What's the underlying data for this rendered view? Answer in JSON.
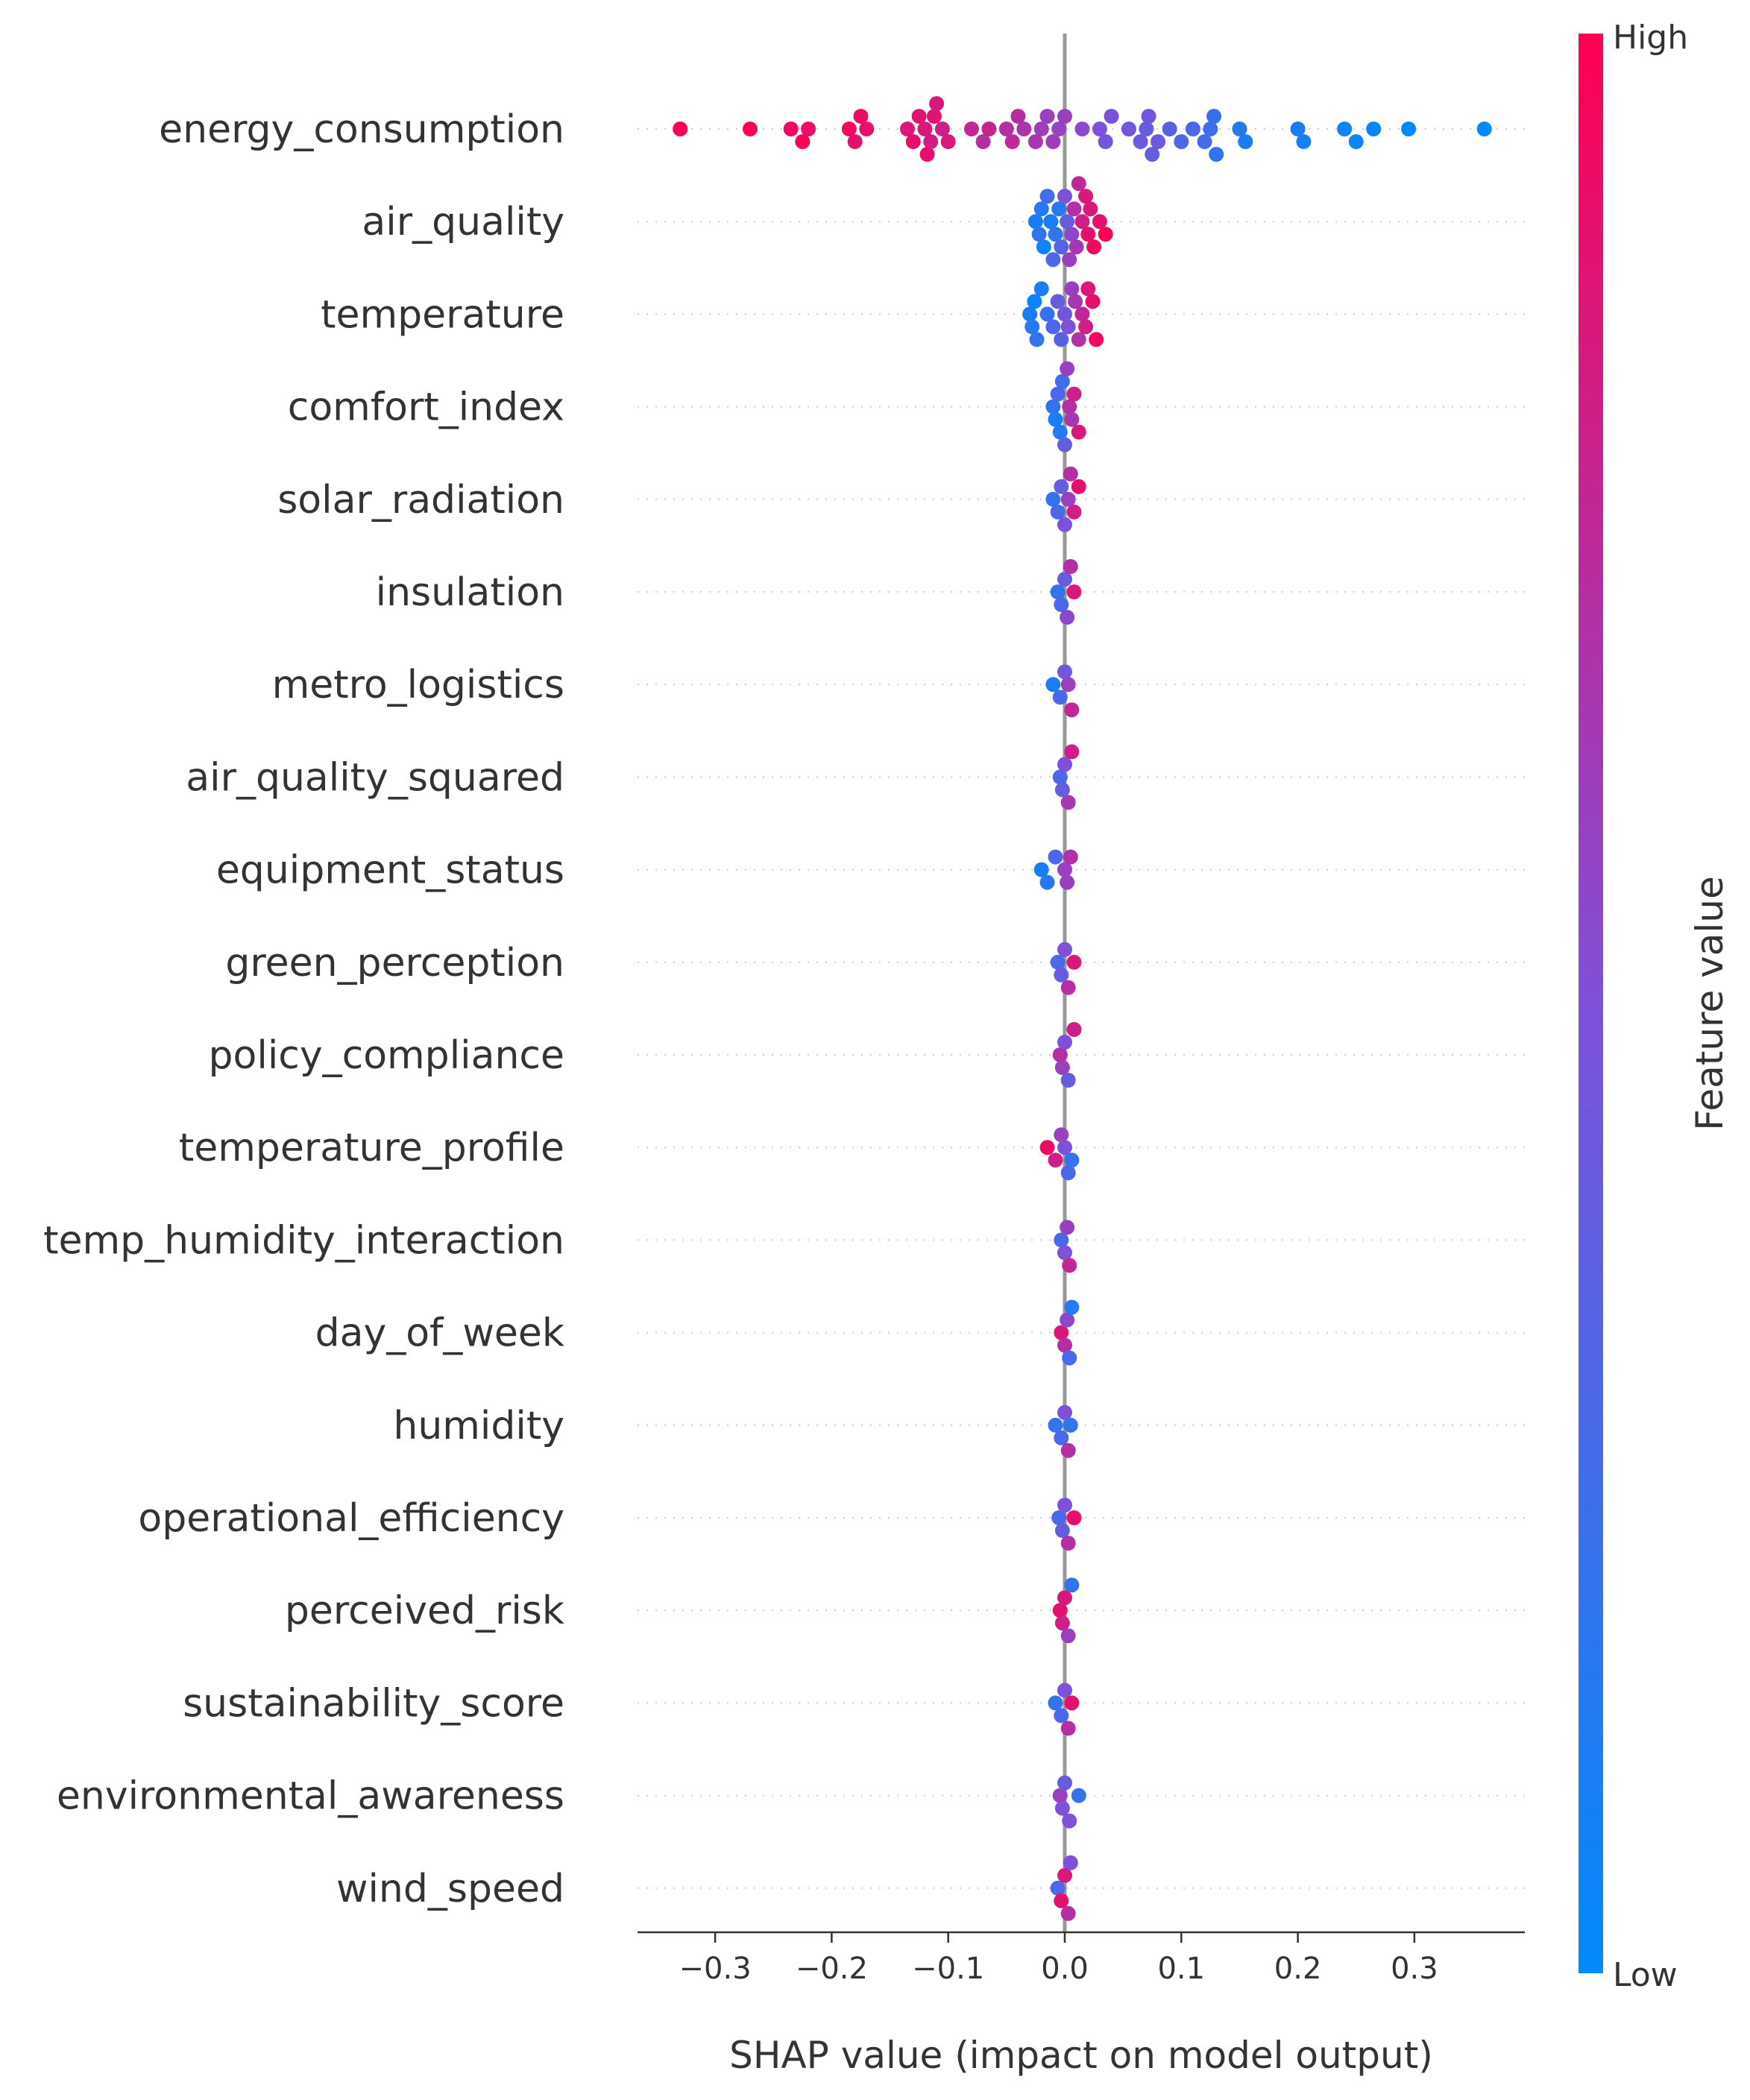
{
  "chart_data": {
    "type": "scatter",
    "subtype": "shap-beeswarm-summary",
    "title": "",
    "xlabel": "SHAP value (impact on model output)",
    "xlim": [
      -0.365,
      0.395
    ],
    "xticks": [
      -0.3,
      -0.2,
      -0.1,
      0.0,
      0.1,
      0.2,
      0.3
    ],
    "xtick_labels": [
      "−0.3",
      "−0.2",
      "−0.1",
      "0.0",
      "0.1",
      "0.2",
      "0.3"
    ],
    "zero_line": true,
    "row_gridlines": "dotted",
    "colorbar": {
      "label": "Feature value",
      "high_label": "High",
      "low_label": "Low",
      "low_color": "#008afb",
      "mid_color": "#7f50d9",
      "high_color": "#ff0052"
    },
    "features": [
      {
        "name": "energy_consumption",
        "points": [
          {
            "x": -0.33,
            "v": 1.0
          },
          {
            "x": -0.27,
            "v": 1.0
          },
          {
            "x": -0.235,
            "v": 0.95
          },
          {
            "x": -0.225,
            "v": 1.0
          },
          {
            "x": -0.22,
            "v": 0.92
          },
          {
            "x": -0.185,
            "v": 0.95
          },
          {
            "x": -0.18,
            "v": 0.9
          },
          {
            "x": -0.175,
            "v": 0.93
          },
          {
            "x": -0.17,
            "v": 0.9
          },
          {
            "x": -0.135,
            "v": 0.85
          },
          {
            "x": -0.13,
            "v": 0.9
          },
          {
            "x": -0.125,
            "v": 0.88
          },
          {
            "x": -0.12,
            "v": 0.85
          },
          {
            "x": -0.118,
            "v": 0.9
          },
          {
            "x": -0.115,
            "v": 0.82
          },
          {
            "x": -0.112,
            "v": 0.88
          },
          {
            "x": -0.11,
            "v": 0.85
          },
          {
            "x": -0.105,
            "v": 0.8
          },
          {
            "x": -0.1,
            "v": 0.85
          },
          {
            "x": -0.08,
            "v": 0.75
          },
          {
            "x": -0.07,
            "v": 0.72
          },
          {
            "x": -0.065,
            "v": 0.78
          },
          {
            "x": -0.05,
            "v": 0.7
          },
          {
            "x": -0.045,
            "v": 0.75
          },
          {
            "x": -0.04,
            "v": 0.72
          },
          {
            "x": -0.035,
            "v": 0.68
          },
          {
            "x": -0.025,
            "v": 0.65
          },
          {
            "x": -0.02,
            "v": 0.62
          },
          {
            "x": -0.015,
            "v": 0.6
          },
          {
            "x": -0.01,
            "v": 0.62
          },
          {
            "x": -0.005,
            "v": 0.58
          },
          {
            "x": 0.0,
            "v": 0.6
          },
          {
            "x": 0.015,
            "v": 0.55
          },
          {
            "x": 0.03,
            "v": 0.5
          },
          {
            "x": 0.035,
            "v": 0.45
          },
          {
            "x": 0.04,
            "v": 0.48
          },
          {
            "x": 0.055,
            "v": 0.45
          },
          {
            "x": 0.065,
            "v": 0.42
          },
          {
            "x": 0.07,
            "v": 0.4
          },
          {
            "x": 0.072,
            "v": 0.45
          },
          {
            "x": 0.075,
            "v": 0.38
          },
          {
            "x": 0.08,
            "v": 0.42
          },
          {
            "x": 0.09,
            "v": 0.35
          },
          {
            "x": 0.1,
            "v": 0.32
          },
          {
            "x": 0.11,
            "v": 0.3
          },
          {
            "x": 0.12,
            "v": 0.28
          },
          {
            "x": 0.125,
            "v": 0.25
          },
          {
            "x": 0.128,
            "v": 0.22
          },
          {
            "x": 0.13,
            "v": 0.2
          },
          {
            "x": 0.15,
            "v": 0.15
          },
          {
            "x": 0.155,
            "v": 0.12
          },
          {
            "x": 0.2,
            "v": 0.1
          },
          {
            "x": 0.205,
            "v": 0.08
          },
          {
            "x": 0.24,
            "v": 0.06
          },
          {
            "x": 0.25,
            "v": 0.05
          },
          {
            "x": 0.265,
            "v": 0.04
          },
          {
            "x": 0.295,
            "v": 0.02
          },
          {
            "x": 0.36,
            "v": 0.0
          }
        ]
      },
      {
        "name": "air_quality",
        "points": [
          {
            "x": -0.025,
            "v": 0.1
          },
          {
            "x": -0.022,
            "v": 0.2
          },
          {
            "x": -0.02,
            "v": 0.15
          },
          {
            "x": -0.018,
            "v": 0.05
          },
          {
            "x": -0.015,
            "v": 0.25
          },
          {
            "x": -0.012,
            "v": 0.1
          },
          {
            "x": -0.01,
            "v": 0.3
          },
          {
            "x": -0.008,
            "v": 0.2
          },
          {
            "x": -0.005,
            "v": 0.15
          },
          {
            "x": -0.003,
            "v": 0.35
          },
          {
            "x": 0.0,
            "v": 0.5
          },
          {
            "x": 0.002,
            "v": 0.4
          },
          {
            "x": 0.004,
            "v": 0.6
          },
          {
            "x": 0.006,
            "v": 0.55
          },
          {
            "x": 0.008,
            "v": 0.7
          },
          {
            "x": 0.01,
            "v": 0.65
          },
          {
            "x": 0.012,
            "v": 0.75
          },
          {
            "x": 0.015,
            "v": 0.8
          },
          {
            "x": 0.018,
            "v": 0.85
          },
          {
            "x": 0.02,
            "v": 0.9
          },
          {
            "x": 0.022,
            "v": 0.85
          },
          {
            "x": 0.025,
            "v": 0.95
          },
          {
            "x": 0.03,
            "v": 0.9
          },
          {
            "x": 0.035,
            "v": 1.0
          }
        ]
      },
      {
        "name": "temperature",
        "points": [
          {
            "x": -0.03,
            "v": 0.1
          },
          {
            "x": -0.028,
            "v": 0.15
          },
          {
            "x": -0.026,
            "v": 0.05
          },
          {
            "x": -0.024,
            "v": 0.2
          },
          {
            "x": -0.02,
            "v": 0.1
          },
          {
            "x": -0.015,
            "v": 0.2
          },
          {
            "x": -0.01,
            "v": 0.3
          },
          {
            "x": -0.006,
            "v": 0.4
          },
          {
            "x": -0.003,
            "v": 0.35
          },
          {
            "x": 0.0,
            "v": 0.45
          },
          {
            "x": 0.003,
            "v": 0.5
          },
          {
            "x": 0.006,
            "v": 0.6
          },
          {
            "x": 0.009,
            "v": 0.65
          },
          {
            "x": 0.012,
            "v": 0.7
          },
          {
            "x": 0.015,
            "v": 0.75
          },
          {
            "x": 0.018,
            "v": 0.8
          },
          {
            "x": 0.02,
            "v": 0.85
          },
          {
            "x": 0.024,
            "v": 0.9
          },
          {
            "x": 0.027,
            "v": 0.95
          }
        ]
      },
      {
        "name": "comfort_index",
        "points": [
          {
            "x": -0.01,
            "v": 0.2
          },
          {
            "x": -0.008,
            "v": 0.1
          },
          {
            "x": -0.006,
            "v": 0.3
          },
          {
            "x": -0.004,
            "v": 0.15
          },
          {
            "x": -0.002,
            "v": 0.25
          },
          {
            "x": 0.0,
            "v": 0.4
          },
          {
            "x": 0.002,
            "v": 0.6
          },
          {
            "x": 0.004,
            "v": 0.7
          },
          {
            "x": 0.006,
            "v": 0.65
          },
          {
            "x": 0.008,
            "v": 0.8
          },
          {
            "x": 0.012,
            "v": 0.85
          }
        ]
      },
      {
        "name": "solar_radiation",
        "points": [
          {
            "x": -0.01,
            "v": 0.2
          },
          {
            "x": -0.006,
            "v": 0.3
          },
          {
            "x": -0.003,
            "v": 0.4
          },
          {
            "x": 0.0,
            "v": 0.5
          },
          {
            "x": 0.003,
            "v": 0.6
          },
          {
            "x": 0.005,
            "v": 0.7
          },
          {
            "x": 0.008,
            "v": 0.8
          },
          {
            "x": 0.012,
            "v": 0.9
          }
        ]
      },
      {
        "name": "insulation",
        "points": [
          {
            "x": -0.006,
            "v": 0.2
          },
          {
            "x": -0.003,
            "v": 0.3
          },
          {
            "x": 0.0,
            "v": 0.4
          },
          {
            "x": 0.002,
            "v": 0.55
          },
          {
            "x": 0.005,
            "v": 0.7
          },
          {
            "x": 0.008,
            "v": 0.85
          }
        ]
      },
      {
        "name": "metro_logistics",
        "points": [
          {
            "x": -0.01,
            "v": 0.1
          },
          {
            "x": -0.004,
            "v": 0.3
          },
          {
            "x": 0.0,
            "v": 0.45
          },
          {
            "x": 0.003,
            "v": 0.6
          },
          {
            "x": 0.006,
            "v": 0.75
          }
        ]
      },
      {
        "name": "air_quality_squared",
        "points": [
          {
            "x": -0.004,
            "v": 0.3
          },
          {
            "x": -0.002,
            "v": 0.4
          },
          {
            "x": 0.0,
            "v": 0.5
          },
          {
            "x": 0.003,
            "v": 0.65
          },
          {
            "x": 0.006,
            "v": 0.8
          }
        ]
      },
      {
        "name": "equipment_status",
        "points": [
          {
            "x": -0.02,
            "v": 0.1
          },
          {
            "x": -0.015,
            "v": 0.15
          },
          {
            "x": -0.008,
            "v": 0.3
          },
          {
            "x": 0.0,
            "v": 0.6
          },
          {
            "x": 0.002,
            "v": 0.6
          },
          {
            "x": 0.005,
            "v": 0.7
          }
        ]
      },
      {
        "name": "green_perception",
        "points": [
          {
            "x": -0.006,
            "v": 0.3
          },
          {
            "x": -0.003,
            "v": 0.4
          },
          {
            "x": 0.0,
            "v": 0.5
          },
          {
            "x": 0.003,
            "v": 0.7
          },
          {
            "x": 0.008,
            "v": 0.85
          }
        ]
      },
      {
        "name": "policy_compliance",
        "points": [
          {
            "x": -0.004,
            "v": 0.7
          },
          {
            "x": -0.002,
            "v": 0.6
          },
          {
            "x": 0.0,
            "v": 0.5
          },
          {
            "x": 0.003,
            "v": 0.4
          },
          {
            "x": 0.008,
            "v": 0.8
          }
        ]
      },
      {
        "name": "temperature_profile",
        "points": [
          {
            "x": -0.015,
            "v": 0.95
          },
          {
            "x": -0.008,
            "v": 0.8
          },
          {
            "x": -0.003,
            "v": 0.6
          },
          {
            "x": 0.0,
            "v": 0.5
          },
          {
            "x": 0.003,
            "v": 0.3
          },
          {
            "x": 0.006,
            "v": 0.2
          }
        ]
      },
      {
        "name": "temp_humidity_interaction",
        "points": [
          {
            "x": -0.003,
            "v": 0.3
          },
          {
            "x": 0.0,
            "v": 0.5
          },
          {
            "x": 0.002,
            "v": 0.6
          },
          {
            "x": 0.004,
            "v": 0.75
          }
        ]
      },
      {
        "name": "day_of_week",
        "points": [
          {
            "x": -0.003,
            "v": 0.85
          },
          {
            "x": 0.0,
            "v": 0.7
          },
          {
            "x": 0.002,
            "v": 0.55
          },
          {
            "x": 0.004,
            "v": 0.3
          },
          {
            "x": 0.006,
            "v": 0.15
          }
        ]
      },
      {
        "name": "humidity",
        "points": [
          {
            "x": -0.008,
            "v": 0.2
          },
          {
            "x": -0.003,
            "v": 0.3
          },
          {
            "x": 0.0,
            "v": 0.5
          },
          {
            "x": 0.003,
            "v": 0.7
          },
          {
            "x": 0.005,
            "v": 0.2
          }
        ]
      },
      {
        "name": "operational_efficiency",
        "points": [
          {
            "x": -0.005,
            "v": 0.3
          },
          {
            "x": -0.002,
            "v": 0.4
          },
          {
            "x": 0.0,
            "v": 0.5
          },
          {
            "x": 0.003,
            "v": 0.7
          },
          {
            "x": 0.008,
            "v": 0.9
          }
        ]
      },
      {
        "name": "perceived_risk",
        "points": [
          {
            "x": -0.004,
            "v": 0.9
          },
          {
            "x": -0.002,
            "v": 0.8
          },
          {
            "x": 0.0,
            "v": 0.85
          },
          {
            "x": 0.003,
            "v": 0.6
          },
          {
            "x": 0.006,
            "v": 0.2
          }
        ]
      },
      {
        "name": "sustainability_score",
        "points": [
          {
            "x": -0.008,
            "v": 0.2
          },
          {
            "x": -0.003,
            "v": 0.3
          },
          {
            "x": 0.0,
            "v": 0.5
          },
          {
            "x": 0.003,
            "v": 0.7
          },
          {
            "x": 0.006,
            "v": 0.9
          }
        ]
      },
      {
        "name": "environmental_awareness",
        "points": [
          {
            "x": -0.004,
            "v": 0.6
          },
          {
            "x": -0.002,
            "v": 0.5
          },
          {
            "x": 0.0,
            "v": 0.4
          },
          {
            "x": 0.004,
            "v": 0.5
          },
          {
            "x": 0.012,
            "v": 0.2
          }
        ]
      },
      {
        "name": "wind_speed",
        "points": [
          {
            "x": -0.006,
            "v": 0.3
          },
          {
            "x": -0.003,
            "v": 0.9
          },
          {
            "x": 0.0,
            "v": 0.85
          },
          {
            "x": 0.003,
            "v": 0.7
          },
          {
            "x": 0.005,
            "v": 0.5
          }
        ]
      }
    ]
  }
}
